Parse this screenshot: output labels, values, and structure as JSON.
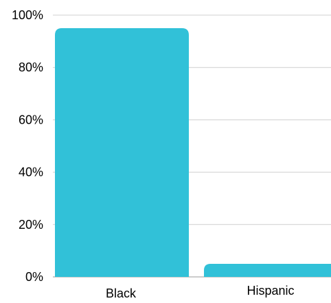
{
  "chart_data": {
    "type": "bar",
    "categories": [
      "Black",
      "Hispanic"
    ],
    "values": [
      95,
      5
    ],
    "ylim": [
      0,
      100
    ],
    "yticks": [
      0,
      20,
      40,
      60,
      80,
      100
    ],
    "ytick_format": "percent",
    "ytick_labels": [
      "0%",
      "20%",
      "40%",
      "60%",
      "80%",
      "100%"
    ],
    "grid": true,
    "legend": "none",
    "colors": {
      "bar": "#31c1d8",
      "grid": "#cfcfcf",
      "text": "#000000"
    }
  }
}
